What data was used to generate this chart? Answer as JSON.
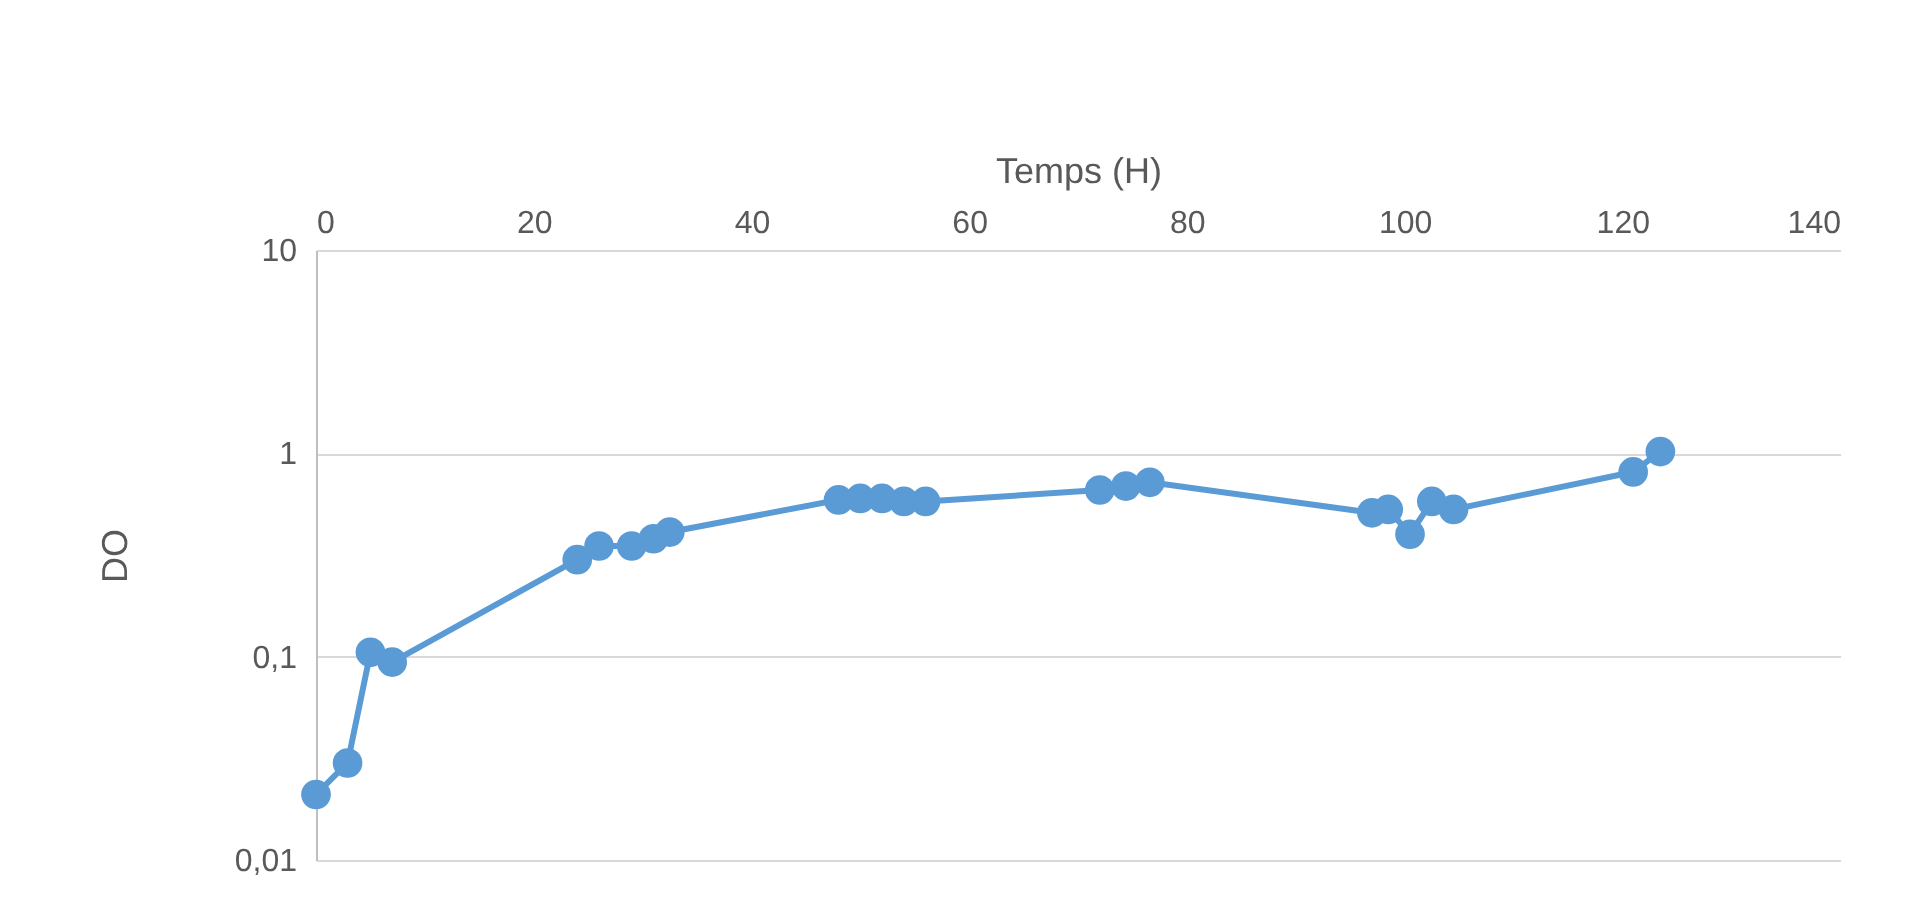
{
  "chart_data": {
    "type": "line",
    "xlabel": "Temps (H)",
    "ylabel": "DO",
    "x": [
      0,
      2.9,
      5,
      7,
      24,
      26,
      29,
      31,
      32.5,
      48,
      50,
      52,
      54,
      56,
      72,
      74.4,
      76.6,
      97,
      98.5,
      100.5,
      102.5,
      104.5,
      121,
      123.5
    ],
    "series": [
      {
        "color": "#5b9bd5",
        "values": [
          0.021,
          0.03,
          0.105,
          0.094,
          0.3,
          0.35,
          0.35,
          0.38,
          0.41,
          0.59,
          0.6,
          0.6,
          0.58,
          0.58,
          0.66,
          0.69,
          0.72,
          0.51,
          0.53,
          0.4,
          0.58,
          0.53,
          0.81,
          1.02
        ]
      }
    ],
    "xlim": [
      0,
      140
    ],
    "xticks": [
      0,
      20,
      40,
      60,
      80,
      100,
      120,
      140
    ],
    "ylim": [
      0.01,
      10
    ],
    "yticks": [
      {
        "value": 0.01,
        "label": "0,01"
      },
      {
        "value": 0.1,
        "label": "0,1"
      },
      1,
      10
    ],
    "log": "y",
    "grid": "y",
    "marker": "circle",
    "line_style": "solid"
  }
}
